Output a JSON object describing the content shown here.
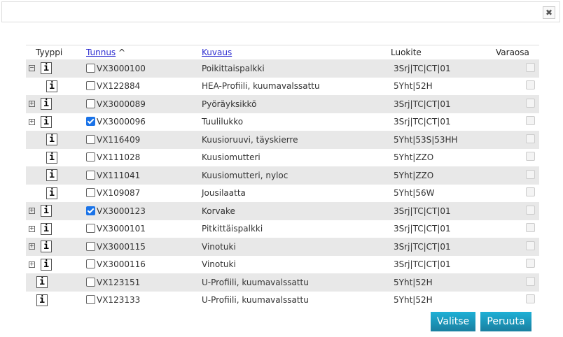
{
  "dialog": {
    "close_icon": "close-icon"
  },
  "table": {
    "headers": {
      "type": "Tyyppi",
      "id": "Tunnus",
      "sort_indicator": "^",
      "description": "Kuvaus",
      "class": "Luokite",
      "spare": "Varaosa"
    },
    "rows": [
      {
        "expander": "minus",
        "level": 0,
        "checked": false,
        "id": "VX3000100",
        "description": "Poikittaispalkki",
        "class": "3Srj|TC|CT|01"
      },
      {
        "expander": "none",
        "level": 1,
        "checked": false,
        "id": "VX122884",
        "description": "HEA-Profiili, kuumavalssattu",
        "class": "5Yht|52H"
      },
      {
        "expander": "plus",
        "level": 1,
        "checked": false,
        "id": "VX3000089",
        "description": "Pyöräyksikkö",
        "class": "3Srj|TC|CT|01"
      },
      {
        "expander": "plus",
        "level": 1,
        "checked": true,
        "id": "VX3000096",
        "description": "Tuulilukko",
        "class": "3Srj|TC|CT|01"
      },
      {
        "expander": "none",
        "level": 1,
        "checked": false,
        "id": "VX116409",
        "description": "Kuusioruuvi, täyskierre",
        "class": "5Yht|53S|53HH"
      },
      {
        "expander": "none",
        "level": 1,
        "checked": false,
        "id": "VX111028",
        "description": "Kuusiomutteri",
        "class": "5Yht|ZZO"
      },
      {
        "expander": "none",
        "level": 1,
        "checked": false,
        "id": "VX111041",
        "description": "Kuusiomutteri, nyloc",
        "class": "5Yht|ZZO"
      },
      {
        "expander": "none",
        "level": 1,
        "checked": false,
        "id": "VX109087",
        "description": "Jousilaatta",
        "class": "5Yht|56W"
      },
      {
        "expander": "plus",
        "level": 0,
        "checked": true,
        "id": "VX3000123",
        "description": "Korvake",
        "class": "3Srj|TC|CT|01"
      },
      {
        "expander": "plus",
        "level": 0,
        "checked": false,
        "id": "VX3000101",
        "description": "Pitkittäispalkki",
        "class": "3Srj|TC|CT|01"
      },
      {
        "expander": "plus",
        "level": 0,
        "checked": false,
        "id": "VX3000115",
        "description": "Vinotuki",
        "class": "3Srj|TC|CT|01"
      },
      {
        "expander": "plus",
        "level": 0,
        "checked": false,
        "id": "VX3000116",
        "description": "Vinotuki",
        "class": "3Srj|TC|CT|01"
      },
      {
        "expander": "none",
        "level": 0,
        "checked": false,
        "id": "VX123151",
        "description": "U-Profiili, kuumavalssattu",
        "class": "5Yht|52H"
      },
      {
        "expander": "none",
        "level": 0,
        "checked": false,
        "id": "VX123133",
        "description": "U-Profiili, kuumavalssattu",
        "class": "5Yht|52H"
      }
    ]
  },
  "buttons": {
    "select": "Valitse",
    "cancel": "Peruuta"
  },
  "colors": {
    "button": "#1a9fc6",
    "row_alt": "#e8e8e8",
    "link": "#2a2ad0",
    "checked": "#1a73e8"
  }
}
